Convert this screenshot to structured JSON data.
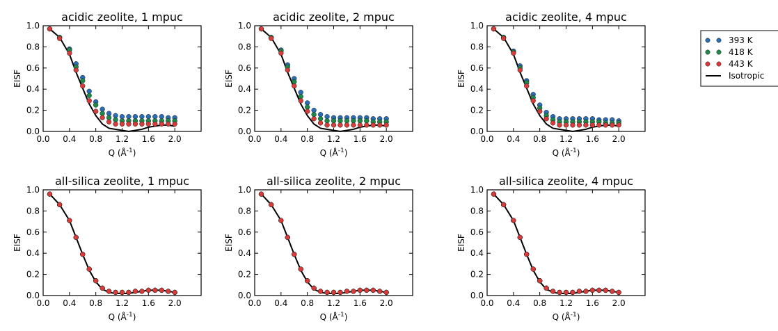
{
  "chart_data": [
    {
      "type": "scatter",
      "title": "acidic zeolite, 1 mpuc",
      "xlabel": "Q (Å$^{-1}$)",
      "ylabel": "EISF",
      "xlim": [
        0.0,
        2.4
      ],
      "ylim": [
        0.0,
        1.0
      ],
      "xticks": [
        "0.0",
        "0.4",
        "0.8",
        "1.2",
        "1.6",
        "2.0"
      ],
      "yticks": [
        "0.0",
        "0.2",
        "0.4",
        "0.6",
        "0.8",
        "1.0"
      ],
      "x": [
        0.1,
        0.25,
        0.4,
        0.5,
        0.6,
        0.7,
        0.8,
        0.9,
        1.0,
        1.1,
        1.2,
        1.3,
        1.4,
        1.5,
        1.6,
        1.7,
        1.8,
        1.9,
        2.0
      ],
      "series": [
        {
          "name": "393 K",
          "color": "#2a6db5",
          "type": "scatter",
          "values": [
            0.97,
            0.89,
            0.78,
            0.64,
            0.51,
            0.38,
            0.28,
            0.21,
            0.17,
            0.15,
            0.14,
            0.14,
            0.14,
            0.14,
            0.14,
            0.14,
            0.14,
            0.13,
            0.13
          ]
        },
        {
          "name": "418 K",
          "color": "#1e8a4a",
          "type": "scatter",
          "values": [
            0.97,
            0.89,
            0.77,
            0.61,
            0.48,
            0.34,
            0.25,
            0.17,
            0.13,
            0.11,
            0.1,
            0.1,
            0.1,
            0.1,
            0.1,
            0.1,
            0.1,
            0.1,
            0.1
          ]
        },
        {
          "name": "443 K",
          "color": "#d93a3a",
          "type": "scatter",
          "values": [
            0.97,
            0.88,
            0.74,
            0.58,
            0.43,
            0.29,
            0.19,
            0.13,
            0.09,
            0.07,
            0.07,
            0.07,
            0.07,
            0.07,
            0.07,
            0.07,
            0.07,
            0.07,
            0.07
          ]
        },
        {
          "name": "Isotropic",
          "color": "#000000",
          "type": "line",
          "values": [
            0.97,
            0.89,
            0.73,
            0.56,
            0.41,
            0.26,
            0.15,
            0.07,
            0.03,
            0.02,
            0.01,
            0.0,
            0.01,
            0.02,
            0.04,
            0.05,
            0.06,
            0.06,
            0.05
          ]
        }
      ]
    },
    {
      "type": "scatter",
      "title": "acidic zeolite, 2 mpuc",
      "xlabel": "Q (Å$^{-1}$)",
      "ylabel": "EISF",
      "xlim": [
        0.0,
        2.4
      ],
      "ylim": [
        0.0,
        1.0
      ],
      "xticks": [
        "0.0",
        "0.4",
        "0.8",
        "1.2",
        "1.6",
        "2.0"
      ],
      "yticks": [
        "0.0",
        "0.2",
        "0.4",
        "0.6",
        "0.8",
        "1.0"
      ],
      "x": [
        0.1,
        0.25,
        0.4,
        0.5,
        0.6,
        0.7,
        0.8,
        0.9,
        1.0,
        1.1,
        1.2,
        1.3,
        1.4,
        1.5,
        1.6,
        1.7,
        1.8,
        1.9,
        2.0
      ],
      "series": [
        {
          "name": "393 K",
          "color": "#2a6db5",
          "type": "scatter",
          "values": [
            0.97,
            0.89,
            0.77,
            0.63,
            0.5,
            0.37,
            0.27,
            0.2,
            0.16,
            0.14,
            0.13,
            0.13,
            0.13,
            0.13,
            0.13,
            0.13,
            0.12,
            0.12,
            0.12
          ]
        },
        {
          "name": "418 K",
          "color": "#1e8a4a",
          "type": "scatter",
          "values": [
            0.97,
            0.89,
            0.76,
            0.61,
            0.47,
            0.33,
            0.23,
            0.16,
            0.12,
            0.1,
            0.1,
            0.1,
            0.1,
            0.1,
            0.1,
            0.1,
            0.09,
            0.09,
            0.09
          ]
        },
        {
          "name": "443 K",
          "color": "#d93a3a",
          "type": "scatter",
          "values": [
            0.97,
            0.88,
            0.74,
            0.58,
            0.43,
            0.29,
            0.19,
            0.12,
            0.08,
            0.06,
            0.06,
            0.06,
            0.06,
            0.06,
            0.06,
            0.06,
            0.06,
            0.06,
            0.06
          ]
        },
        {
          "name": "Isotropic",
          "color": "#000000",
          "type": "line",
          "values": [
            0.97,
            0.89,
            0.73,
            0.56,
            0.41,
            0.26,
            0.15,
            0.07,
            0.03,
            0.02,
            0.01,
            0.0,
            0.01,
            0.02,
            0.04,
            0.05,
            0.06,
            0.06,
            0.05
          ]
        }
      ]
    },
    {
      "type": "scatter",
      "title": "acidic zeolite, 4 mpuc",
      "xlabel": "Q (Å$^{-1}$)",
      "ylabel": "EISF",
      "xlim": [
        0.0,
        2.4
      ],
      "ylim": [
        0.0,
        1.0
      ],
      "xticks": [
        "0.0",
        "0.4",
        "0.8",
        "1.2",
        "1.6",
        "2.0"
      ],
      "yticks": [
        "0.0",
        "0.2",
        "0.4",
        "0.6",
        "0.8",
        "1.0"
      ],
      "x": [
        0.1,
        0.25,
        0.4,
        0.5,
        0.6,
        0.7,
        0.8,
        0.9,
        1.0,
        1.1,
        1.2,
        1.3,
        1.4,
        1.5,
        1.6,
        1.7,
        1.8,
        1.9,
        2.0
      ],
      "series": [
        {
          "name": "393 K",
          "color": "#2a6db5",
          "type": "scatter",
          "values": [
            0.97,
            0.89,
            0.76,
            0.62,
            0.48,
            0.35,
            0.25,
            0.18,
            0.14,
            0.12,
            0.12,
            0.12,
            0.12,
            0.12,
            0.12,
            0.11,
            0.11,
            0.11,
            0.1
          ]
        },
        {
          "name": "418 K",
          "color": "#1e8a4a",
          "type": "scatter",
          "values": [
            0.97,
            0.89,
            0.75,
            0.6,
            0.46,
            0.32,
            0.22,
            0.15,
            0.11,
            0.09,
            0.09,
            0.09,
            0.09,
            0.09,
            0.09,
            0.09,
            0.08,
            0.08,
            0.08
          ]
        },
        {
          "name": "443 K",
          "color": "#d93a3a",
          "type": "scatter",
          "values": [
            0.97,
            0.88,
            0.74,
            0.58,
            0.43,
            0.29,
            0.19,
            0.12,
            0.08,
            0.06,
            0.06,
            0.06,
            0.06,
            0.06,
            0.06,
            0.06,
            0.06,
            0.06,
            0.06
          ]
        },
        {
          "name": "Isotropic",
          "color": "#000000",
          "type": "line",
          "values": [
            0.97,
            0.89,
            0.73,
            0.56,
            0.41,
            0.26,
            0.15,
            0.07,
            0.03,
            0.02,
            0.01,
            0.0,
            0.01,
            0.02,
            0.04,
            0.05,
            0.06,
            0.06,
            0.05
          ]
        }
      ]
    },
    {
      "type": "scatter",
      "title": "all-silica zeolite, 1 mpuc",
      "xlabel": "Q (Å$^{-1}$)",
      "ylabel": "EISF",
      "xlim": [
        0.0,
        2.4
      ],
      "ylim": [
        0.0,
        1.0
      ],
      "xticks": [
        "0.0",
        "0.4",
        "0.8",
        "1.2",
        "1.6",
        "2.0"
      ],
      "yticks": [
        "0.0",
        "0.2",
        "0.4",
        "0.6",
        "0.8",
        "1.0"
      ],
      "x": [
        0.1,
        0.25,
        0.4,
        0.5,
        0.6,
        0.7,
        0.8,
        0.9,
        1.0,
        1.1,
        1.2,
        1.3,
        1.4,
        1.5,
        1.6,
        1.7,
        1.8,
        1.9,
        2.0
      ],
      "series": [
        {
          "name": "393 K",
          "color": "#2a6db5",
          "type": "scatter",
          "values": [
            0.96,
            0.86,
            0.71,
            0.55,
            0.39,
            0.25,
            0.14,
            0.07,
            0.04,
            0.03,
            0.03,
            0.03,
            0.04,
            0.04,
            0.05,
            0.05,
            0.05,
            0.04,
            0.03
          ]
        },
        {
          "name": "418 K",
          "color": "#1e8a4a",
          "type": "scatter",
          "values": [
            0.96,
            0.86,
            0.71,
            0.55,
            0.39,
            0.25,
            0.14,
            0.07,
            0.04,
            0.03,
            0.03,
            0.03,
            0.04,
            0.04,
            0.05,
            0.05,
            0.05,
            0.04,
            0.03
          ]
        },
        {
          "name": "443 K",
          "color": "#d93a3a",
          "type": "scatter",
          "values": [
            0.96,
            0.86,
            0.71,
            0.55,
            0.39,
            0.25,
            0.14,
            0.07,
            0.04,
            0.03,
            0.03,
            0.03,
            0.04,
            0.04,
            0.05,
            0.05,
            0.05,
            0.04,
            0.03
          ]
        },
        {
          "name": "Isotropic",
          "color": "#000000",
          "type": "line",
          "values": [
            0.96,
            0.86,
            0.71,
            0.55,
            0.39,
            0.24,
            0.13,
            0.06,
            0.03,
            0.02,
            0.02,
            0.02,
            0.03,
            0.04,
            0.05,
            0.05,
            0.05,
            0.04,
            0.03
          ]
        }
      ]
    },
    {
      "type": "scatter",
      "title": "all-silica zeolite, 2 mpuc",
      "xlabel": "Q (Å$^{-1}$)",
      "ylabel": "EISF",
      "xlim": [
        0.0,
        2.4
      ],
      "ylim": [
        0.0,
        1.0
      ],
      "xticks": [
        "0.0",
        "0.4",
        "0.8",
        "1.2",
        "1.6",
        "2.0"
      ],
      "yticks": [
        "0.0",
        "0.2",
        "0.4",
        "0.6",
        "0.8",
        "1.0"
      ],
      "x": [
        0.1,
        0.25,
        0.4,
        0.5,
        0.6,
        0.7,
        0.8,
        0.9,
        1.0,
        1.1,
        1.2,
        1.3,
        1.4,
        1.5,
        1.6,
        1.7,
        1.8,
        1.9,
        2.0
      ],
      "series": [
        {
          "name": "393 K",
          "color": "#2a6db5",
          "type": "scatter",
          "values": [
            0.96,
            0.86,
            0.71,
            0.55,
            0.39,
            0.25,
            0.14,
            0.07,
            0.04,
            0.03,
            0.03,
            0.03,
            0.04,
            0.04,
            0.05,
            0.05,
            0.05,
            0.04,
            0.03
          ]
        },
        {
          "name": "418 K",
          "color": "#1e8a4a",
          "type": "scatter",
          "values": [
            0.96,
            0.86,
            0.71,
            0.55,
            0.39,
            0.25,
            0.14,
            0.07,
            0.04,
            0.03,
            0.03,
            0.03,
            0.04,
            0.04,
            0.05,
            0.05,
            0.05,
            0.04,
            0.03
          ]
        },
        {
          "name": "443 K",
          "color": "#d93a3a",
          "type": "scatter",
          "values": [
            0.96,
            0.86,
            0.71,
            0.55,
            0.39,
            0.25,
            0.14,
            0.07,
            0.04,
            0.03,
            0.03,
            0.03,
            0.04,
            0.04,
            0.05,
            0.05,
            0.05,
            0.04,
            0.03
          ]
        },
        {
          "name": "Isotropic",
          "color": "#000000",
          "type": "line",
          "values": [
            0.96,
            0.86,
            0.71,
            0.55,
            0.39,
            0.24,
            0.13,
            0.06,
            0.03,
            0.02,
            0.02,
            0.02,
            0.03,
            0.04,
            0.05,
            0.05,
            0.05,
            0.04,
            0.03
          ]
        }
      ]
    },
    {
      "type": "scatter",
      "title": "all-silica zeolite, 4 mpuc",
      "xlabel": "Q (Å$^{-1}$)",
      "ylabel": "EISF",
      "xlim": [
        0.0,
        2.4
      ],
      "ylim": [
        0.0,
        1.0
      ],
      "xticks": [
        "0.0",
        "0.4",
        "0.8",
        "1.2",
        "1.6",
        "2.0"
      ],
      "yticks": [
        "0.0",
        "0.2",
        "0.4",
        "0.6",
        "0.8",
        "1.0"
      ],
      "x": [
        0.1,
        0.25,
        0.4,
        0.5,
        0.6,
        0.7,
        0.8,
        0.9,
        1.0,
        1.1,
        1.2,
        1.3,
        1.4,
        1.5,
        1.6,
        1.7,
        1.8,
        1.9,
        2.0
      ],
      "series": [
        {
          "name": "393 K",
          "color": "#2a6db5",
          "type": "scatter",
          "values": [
            0.96,
            0.86,
            0.71,
            0.55,
            0.39,
            0.25,
            0.14,
            0.07,
            0.04,
            0.03,
            0.03,
            0.03,
            0.04,
            0.04,
            0.05,
            0.05,
            0.05,
            0.04,
            0.03
          ]
        },
        {
          "name": "418 K",
          "color": "#1e8a4a",
          "type": "scatter",
          "values": [
            0.96,
            0.86,
            0.71,
            0.55,
            0.39,
            0.25,
            0.14,
            0.07,
            0.04,
            0.03,
            0.03,
            0.03,
            0.04,
            0.04,
            0.05,
            0.05,
            0.05,
            0.04,
            0.03
          ]
        },
        {
          "name": "443 K",
          "color": "#d93a3a",
          "type": "scatter",
          "values": [
            0.96,
            0.86,
            0.71,
            0.55,
            0.39,
            0.25,
            0.14,
            0.07,
            0.04,
            0.03,
            0.03,
            0.03,
            0.04,
            0.04,
            0.05,
            0.05,
            0.05,
            0.04,
            0.03
          ]
        },
        {
          "name": "Isotropic",
          "color": "#000000",
          "type": "line",
          "values": [
            0.96,
            0.86,
            0.71,
            0.55,
            0.39,
            0.24,
            0.13,
            0.06,
            0.03,
            0.02,
            0.02,
            0.02,
            0.03,
            0.04,
            0.05,
            0.05,
            0.05,
            0.04,
            0.03
          ]
        }
      ]
    }
  ],
  "legend": {
    "placement": "right",
    "items": [
      {
        "label": "393 K",
        "color": "#2a6db5",
        "kind": "marker"
      },
      {
        "label": "418 K",
        "color": "#1e8a4a",
        "kind": "marker"
      },
      {
        "label": "443 K",
        "color": "#d93a3a",
        "kind": "marker"
      },
      {
        "label": "Isotropic",
        "color": "#000000",
        "kind": "line"
      }
    ]
  }
}
